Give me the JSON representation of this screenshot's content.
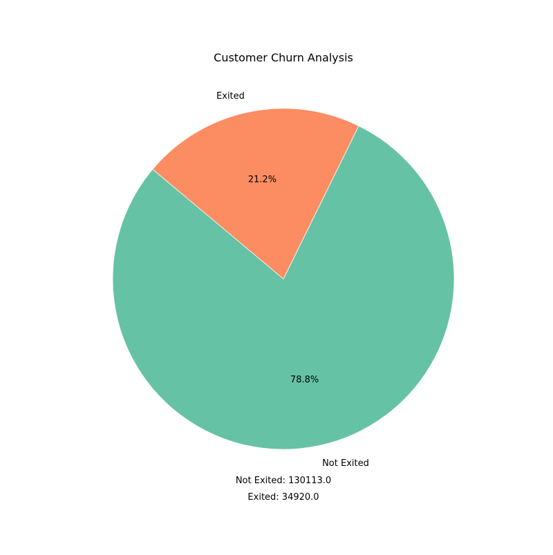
{
  "chart_data": {
    "type": "pie",
    "title": "Customer Churn Analysis",
    "start_angle_deg": 140,
    "direction": "counterclockwise",
    "slices": [
      {
        "label": "Not Exited",
        "value": 130113.0,
        "percent_label": "78.8%",
        "color": "#66c2a5"
      },
      {
        "label": "Exited",
        "value": 34920.0,
        "percent_label": "21.2%",
        "color": "#fc8d62"
      }
    ],
    "annotations": [
      "Not Exited: 130113.0",
      "Exited: 34920.0"
    ]
  }
}
